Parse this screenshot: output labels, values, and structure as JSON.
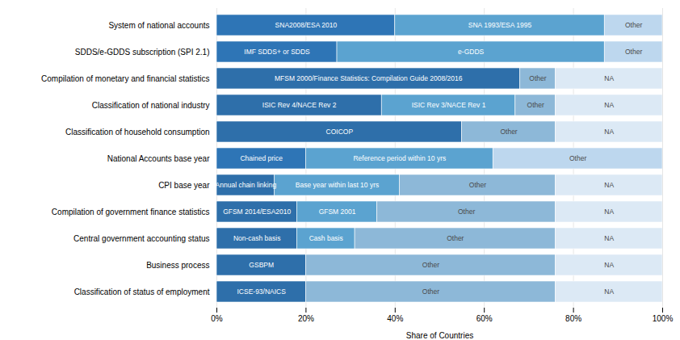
{
  "chart_data": {
    "type": "bar",
    "orientation": "horizontal",
    "stacked": true,
    "xlabel": "Share of Countries",
    "categories": [
      "System of national accounts",
      "SDDS/e-GDDS subscription (SPI 2.1)",
      "Compilation of monetary and financial statistics",
      "Classification of national industry",
      "Classification of household consumption",
      "National Accounts base year",
      "CPI base year",
      "Compilation of government finance statistics",
      "Central government accounting status",
      "Business process",
      "Classification of status of employment"
    ],
    "series": [
      {
        "values": [
          40,
          27,
          68,
          37,
          55,
          20,
          13,
          18,
          18,
          20,
          20
        ],
        "colors": [
          "#2e75b6",
          "#2e75b6",
          "#2e6faa",
          "#2e6faa",
          "#2e6faa",
          "#2e75b6",
          "#2e6faa",
          "#2e6faa",
          "#2e6faa",
          "#2e6faa",
          "#2e6faa"
        ],
        "labels": [
          "SNA2008/ESA 2010",
          "IMF SDDS+ or SDDS",
          "MFSM 2000/Finance Statistics: Compilation Guide 2008/2016",
          "ISIC Rev 4/NACE Rev 2",
          "COICOP",
          "Chained price",
          "Annual chain linking",
          "GFSM 2014/ESA2010",
          "Non-cash basis",
          "GSBPM",
          "ICSE-93/NAICS"
        ]
      },
      {
        "values": [
          47,
          60,
          8,
          30,
          21,
          42,
          28,
          18,
          13,
          56,
          56
        ],
        "colors": [
          "#5ba3d0",
          "#5ba3d0",
          "#8db8d8",
          "#5ba3d0",
          "#8db8d8",
          "#5ba3d0",
          "#5ba3d0",
          "#5ba3d0",
          "#5ba3d0",
          "#8db8d8",
          "#8db8d8"
        ],
        "labels": [
          "SNA 1993/ESA 1995",
          "e-GDDS",
          "Other",
          "ISIC Rev 3/NACE Rev 1",
          "Other",
          "Reference period within 10 yrs",
          "Base year within last 10 yrs",
          "GFSM 2001",
          "Cash basis",
          "Other",
          "Other"
        ]
      },
      {
        "values": [
          13,
          13,
          24,
          9,
          24,
          38,
          35,
          40,
          45,
          24,
          24
        ],
        "colors": [
          "#bdd7ee",
          "#bdd7ee",
          "#dce9f5",
          "#8db8d8",
          "#dce9f5",
          "#bdd7ee",
          "#8db8d8",
          "#8db8d8",
          "#8db8d8",
          "#dce9f5",
          "#dce9f5"
        ],
        "labels": [
          "Other",
          "Other",
          "NA",
          "Other",
          "NA",
          "Other",
          "Other",
          "Other",
          "Other",
          "NA",
          "NA"
        ]
      },
      {
        "values": [
          null,
          null,
          null,
          24,
          null,
          null,
          24,
          24,
          24,
          null,
          null
        ],
        "colors": [
          null,
          null,
          null,
          "#dce9f5",
          null,
          null,
          "#dce9f5",
          "#dce9f5",
          "#dce9f5",
          null,
          null
        ],
        "labels": [
          null,
          null,
          null,
          "NA",
          null,
          null,
          "NA",
          "NA",
          "NA",
          null,
          null
        ]
      }
    ],
    "xlim": [
      0,
      100
    ],
    "xticks": [
      {
        "value": 0,
        "label": "0%"
      },
      {
        "value": 20,
        "label": "20%"
      },
      {
        "value": 40,
        "label": "40%"
      },
      {
        "value": 60,
        "label": "60%"
      },
      {
        "value": 80,
        "label": "80%"
      },
      {
        "value": 100,
        "label": "100%"
      }
    ],
    "grid": true
  }
}
